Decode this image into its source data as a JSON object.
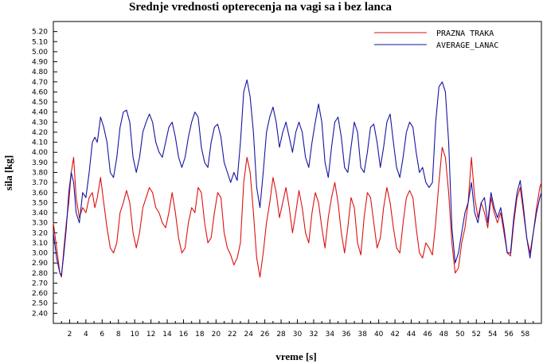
{
  "chart_data": {
    "type": "line",
    "title": "Srednje vrednosti opterecenja na vagi sa i bez lanca",
    "xlabel": "vreme [s]",
    "ylabel": "sila [kg]",
    "xlim": [
      0,
      60
    ],
    "ylim": [
      2.3,
      5.3
    ],
    "x_ticks": [
      2,
      4,
      6,
      8,
      10,
      12,
      14,
      16,
      18,
      20,
      22,
      24,
      26,
      28,
      30,
      32,
      34,
      36,
      38,
      40,
      42,
      44,
      46,
      48,
      50,
      52,
      54,
      56,
      58
    ],
    "y_ticks": [
      2.4,
      2.5,
      2.6,
      2.7,
      2.8,
      2.9,
      3.0,
      3.1,
      3.2,
      3.3,
      3.4,
      3.5,
      3.6,
      3.7,
      3.8,
      3.9,
      4.0,
      4.1,
      4.2,
      4.3,
      4.4,
      4.5,
      4.6,
      4.7,
      4.8,
      4.9,
      5.0,
      5.1,
      5.2
    ],
    "grid": false,
    "legend_position": "top-right",
    "series": [
      {
        "name": "PRAZNA TRAKA",
        "color": "#dd1111",
        "points": [
          [
            0,
            3.3
          ],
          [
            0.4,
            3.05
          ],
          [
            0.8,
            2.8
          ],
          [
            1.0,
            2.76
          ],
          [
            1.3,
            3.05
          ],
          [
            1.6,
            3.3
          ],
          [
            1.9,
            3.5
          ],
          [
            2.2,
            3.8
          ],
          [
            2.5,
            3.95
          ],
          [
            2.8,
            3.55
          ],
          [
            3.2,
            3.35
          ],
          [
            3.6,
            3.45
          ],
          [
            4.0,
            3.4
          ],
          [
            4.4,
            3.55
          ],
          [
            4.8,
            3.6
          ],
          [
            5.1,
            3.45
          ],
          [
            5.4,
            3.55
          ],
          [
            5.8,
            3.75
          ],
          [
            6.2,
            3.5
          ],
          [
            6.6,
            3.25
          ],
          [
            7.0,
            3.05
          ],
          [
            7.4,
            3.0
          ],
          [
            7.8,
            3.1
          ],
          [
            8.2,
            3.4
          ],
          [
            8.6,
            3.5
          ],
          [
            9.0,
            3.62
          ],
          [
            9.4,
            3.5
          ],
          [
            9.8,
            3.2
          ],
          [
            10.2,
            3.05
          ],
          [
            10.6,
            3.2
          ],
          [
            11.0,
            3.45
          ],
          [
            11.4,
            3.55
          ],
          [
            11.8,
            3.65
          ],
          [
            12.2,
            3.6
          ],
          [
            12.6,
            3.45
          ],
          [
            13.0,
            3.4
          ],
          [
            13.4,
            3.3
          ],
          [
            13.8,
            3.25
          ],
          [
            14.2,
            3.4
          ],
          [
            14.6,
            3.6
          ],
          [
            15.0,
            3.4
          ],
          [
            15.4,
            3.15
          ],
          [
            15.8,
            3.0
          ],
          [
            16.2,
            3.05
          ],
          [
            16.6,
            3.3
          ],
          [
            17.0,
            3.45
          ],
          [
            17.4,
            3.4
          ],
          [
            17.8,
            3.65
          ],
          [
            18.2,
            3.6
          ],
          [
            18.6,
            3.3
          ],
          [
            19.0,
            3.1
          ],
          [
            19.4,
            3.15
          ],
          [
            19.8,
            3.4
          ],
          [
            20.2,
            3.6
          ],
          [
            20.6,
            3.55
          ],
          [
            21.0,
            3.2
          ],
          [
            21.4,
            3.05
          ],
          [
            21.8,
            2.98
          ],
          [
            22.2,
            2.88
          ],
          [
            22.6,
            2.95
          ],
          [
            23.0,
            3.1
          ],
          [
            23.4,
            3.7
          ],
          [
            23.8,
            3.95
          ],
          [
            24.2,
            3.8
          ],
          [
            24.6,
            3.4
          ],
          [
            25.0,
            2.95
          ],
          [
            25.4,
            2.76
          ],
          [
            25.8,
            3.0
          ],
          [
            26.2,
            3.3
          ],
          [
            26.6,
            3.5
          ],
          [
            27.0,
            3.75
          ],
          [
            27.4,
            3.6
          ],
          [
            27.8,
            3.35
          ],
          [
            28.2,
            3.5
          ],
          [
            28.6,
            3.65
          ],
          [
            29.0,
            3.45
          ],
          [
            29.4,
            3.2
          ],
          [
            29.8,
            3.4
          ],
          [
            30.2,
            3.62
          ],
          [
            30.6,
            3.45
          ],
          [
            31.0,
            3.2
          ],
          [
            31.4,
            3.1
          ],
          [
            31.8,
            3.4
          ],
          [
            32.2,
            3.6
          ],
          [
            32.6,
            3.5
          ],
          [
            33.0,
            3.25
          ],
          [
            33.4,
            3.05
          ],
          [
            33.8,
            3.35
          ],
          [
            34.2,
            3.55
          ],
          [
            34.6,
            3.7
          ],
          [
            35.0,
            3.5
          ],
          [
            35.4,
            3.2
          ],
          [
            35.8,
            3.0
          ],
          [
            36.2,
            3.25
          ],
          [
            36.6,
            3.55
          ],
          [
            37.0,
            3.45
          ],
          [
            37.4,
            3.1
          ],
          [
            37.8,
            2.98
          ],
          [
            38.2,
            3.35
          ],
          [
            38.6,
            3.6
          ],
          [
            39.0,
            3.55
          ],
          [
            39.4,
            3.3
          ],
          [
            39.8,
            3.05
          ],
          [
            40.2,
            3.15
          ],
          [
            40.6,
            3.45
          ],
          [
            41.0,
            3.65
          ],
          [
            41.4,
            3.5
          ],
          [
            41.8,
            3.25
          ],
          [
            42.2,
            3.05
          ],
          [
            42.6,
            3.0
          ],
          [
            43.0,
            3.3
          ],
          [
            43.4,
            3.55
          ],
          [
            43.8,
            3.62
          ],
          [
            44.2,
            3.55
          ],
          [
            44.6,
            3.25
          ],
          [
            45.0,
            3.0
          ],
          [
            45.4,
            2.95
          ],
          [
            45.8,
            3.1
          ],
          [
            46.2,
            3.05
          ],
          [
            46.6,
            2.98
          ],
          [
            47.0,
            3.3
          ],
          [
            47.4,
            3.7
          ],
          [
            47.8,
            4.05
          ],
          [
            48.2,
            3.95
          ],
          [
            48.6,
            3.6
          ],
          [
            49.0,
            3.1
          ],
          [
            49.4,
            2.8
          ],
          [
            49.8,
            2.85
          ],
          [
            50.2,
            3.1
          ],
          [
            50.6,
            3.25
          ],
          [
            51.0,
            3.5
          ],
          [
            51.4,
            3.95
          ],
          [
            51.8,
            3.55
          ],
          [
            52.2,
            3.35
          ],
          [
            52.6,
            3.5
          ],
          [
            53.0,
            3.4
          ],
          [
            53.4,
            3.25
          ],
          [
            53.8,
            3.55
          ],
          [
            54.2,
            3.4
          ],
          [
            54.6,
            3.3
          ],
          [
            55.0,
            3.4
          ],
          [
            55.4,
            3.2
          ],
          [
            55.8,
            3.0
          ],
          [
            56.2,
            2.97
          ],
          [
            56.6,
            3.3
          ],
          [
            57.0,
            3.55
          ],
          [
            57.4,
            3.65
          ],
          [
            57.8,
            3.4
          ],
          [
            58.2,
            3.15
          ],
          [
            58.6,
            3.0
          ],
          [
            59.0,
            3.2
          ],
          [
            59.4,
            3.45
          ],
          [
            59.8,
            3.65
          ],
          [
            60.0,
            3.7
          ]
        ]
      },
      {
        "name": "AVERAGE_LANAC",
        "color": "#1515a0",
        "points": [
          [
            0,
            3.2
          ],
          [
            0.4,
            2.95
          ],
          [
            0.8,
            2.8
          ],
          [
            1.0,
            2.78
          ],
          [
            1.3,
            3.0
          ],
          [
            1.6,
            3.25
          ],
          [
            1.9,
            3.6
          ],
          [
            2.2,
            3.8
          ],
          [
            2.5,
            3.7
          ],
          [
            2.8,
            3.4
          ],
          [
            3.2,
            3.3
          ],
          [
            3.6,
            3.6
          ],
          [
            4.0,
            3.55
          ],
          [
            4.4,
            3.8
          ],
          [
            4.8,
            4.1
          ],
          [
            5.1,
            4.15
          ],
          [
            5.4,
            4.1
          ],
          [
            5.8,
            4.35
          ],
          [
            6.2,
            4.25
          ],
          [
            6.6,
            4.1
          ],
          [
            7.0,
            3.8
          ],
          [
            7.4,
            3.75
          ],
          [
            7.8,
            3.95
          ],
          [
            8.2,
            4.25
          ],
          [
            8.6,
            4.4
          ],
          [
            9.0,
            4.42
          ],
          [
            9.4,
            4.3
          ],
          [
            9.8,
            3.95
          ],
          [
            10.2,
            3.8
          ],
          [
            10.6,
            3.95
          ],
          [
            11.0,
            4.2
          ],
          [
            11.4,
            4.3
          ],
          [
            11.8,
            4.38
          ],
          [
            12.2,
            4.3
          ],
          [
            12.6,
            4.1
          ],
          [
            13.0,
            4.0
          ],
          [
            13.4,
            3.95
          ],
          [
            13.8,
            4.1
          ],
          [
            14.2,
            4.25
          ],
          [
            14.6,
            4.3
          ],
          [
            15.0,
            4.15
          ],
          [
            15.4,
            3.95
          ],
          [
            15.8,
            3.85
          ],
          [
            16.2,
            3.95
          ],
          [
            16.6,
            4.15
          ],
          [
            17.0,
            4.3
          ],
          [
            17.4,
            4.4
          ],
          [
            17.8,
            4.35
          ],
          [
            18.2,
            4.05
          ],
          [
            18.6,
            3.9
          ],
          [
            19.0,
            3.85
          ],
          [
            19.4,
            4.1
          ],
          [
            19.8,
            4.25
          ],
          [
            20.2,
            4.28
          ],
          [
            20.6,
            4.15
          ],
          [
            21.0,
            3.9
          ],
          [
            21.4,
            3.8
          ],
          [
            21.8,
            3.7
          ],
          [
            22.2,
            3.8
          ],
          [
            22.6,
            3.72
          ],
          [
            23.0,
            4.1
          ],
          [
            23.4,
            4.6
          ],
          [
            23.8,
            4.72
          ],
          [
            24.2,
            4.55
          ],
          [
            24.6,
            4.2
          ],
          [
            25.0,
            3.65
          ],
          [
            25.4,
            3.45
          ],
          [
            25.8,
            3.8
          ],
          [
            26.2,
            4.2
          ],
          [
            26.6,
            4.35
          ],
          [
            27.0,
            4.45
          ],
          [
            27.4,
            4.3
          ],
          [
            27.8,
            4.05
          ],
          [
            28.2,
            4.2
          ],
          [
            28.6,
            4.3
          ],
          [
            29.0,
            4.15
          ],
          [
            29.4,
            4.0
          ],
          [
            29.8,
            4.2
          ],
          [
            30.2,
            4.3
          ],
          [
            30.6,
            4.2
          ],
          [
            31.0,
            3.95
          ],
          [
            31.4,
            3.85
          ],
          [
            31.8,
            4.1
          ],
          [
            32.2,
            4.3
          ],
          [
            32.6,
            4.48
          ],
          [
            33.0,
            4.3
          ],
          [
            33.4,
            3.9
          ],
          [
            33.8,
            3.75
          ],
          [
            34.2,
            4.05
          ],
          [
            34.6,
            4.3
          ],
          [
            35.0,
            4.35
          ],
          [
            35.4,
            4.15
          ],
          [
            35.8,
            3.85
          ],
          [
            36.2,
            3.8
          ],
          [
            36.6,
            4.05
          ],
          [
            37.0,
            4.3
          ],
          [
            37.4,
            4.2
          ],
          [
            37.8,
            3.85
          ],
          [
            38.2,
            3.8
          ],
          [
            38.6,
            4.0
          ],
          [
            39.0,
            4.25
          ],
          [
            39.4,
            4.28
          ],
          [
            39.8,
            4.1
          ],
          [
            40.2,
            3.85
          ],
          [
            40.6,
            4.05
          ],
          [
            41.0,
            4.3
          ],
          [
            41.4,
            4.38
          ],
          [
            41.8,
            4.1
          ],
          [
            42.2,
            3.85
          ],
          [
            42.6,
            3.75
          ],
          [
            43.0,
            3.95
          ],
          [
            43.4,
            4.2
          ],
          [
            43.8,
            4.3
          ],
          [
            44.2,
            4.25
          ],
          [
            44.6,
            4.0
          ],
          [
            45.0,
            3.8
          ],
          [
            45.4,
            3.85
          ],
          [
            45.8,
            3.7
          ],
          [
            46.2,
            3.65
          ],
          [
            46.6,
            3.7
          ],
          [
            47.0,
            4.3
          ],
          [
            47.4,
            4.65
          ],
          [
            47.8,
            4.7
          ],
          [
            48.2,
            4.6
          ],
          [
            48.6,
            4.1
          ],
          [
            49.0,
            3.25
          ],
          [
            49.4,
            2.9
          ],
          [
            49.8,
            3.0
          ],
          [
            50.2,
            3.2
          ],
          [
            50.6,
            3.4
          ],
          [
            51.0,
            3.5
          ],
          [
            51.4,
            3.7
          ],
          [
            51.8,
            3.4
          ],
          [
            52.2,
            3.3
          ],
          [
            52.6,
            3.5
          ],
          [
            53.0,
            3.55
          ],
          [
            53.4,
            3.3
          ],
          [
            53.8,
            3.6
          ],
          [
            54.2,
            3.45
          ],
          [
            54.6,
            3.35
          ],
          [
            55.0,
            3.45
          ],
          [
            55.4,
            3.25
          ],
          [
            55.8,
            3.0
          ],
          [
            56.2,
            3.0
          ],
          [
            56.6,
            3.35
          ],
          [
            57.0,
            3.6
          ],
          [
            57.4,
            3.72
          ],
          [
            57.8,
            3.45
          ],
          [
            58.2,
            3.15
          ],
          [
            58.6,
            2.95
          ],
          [
            59.0,
            3.2
          ],
          [
            59.4,
            3.4
          ],
          [
            59.8,
            3.55
          ],
          [
            60.0,
            3.6
          ]
        ]
      }
    ]
  }
}
